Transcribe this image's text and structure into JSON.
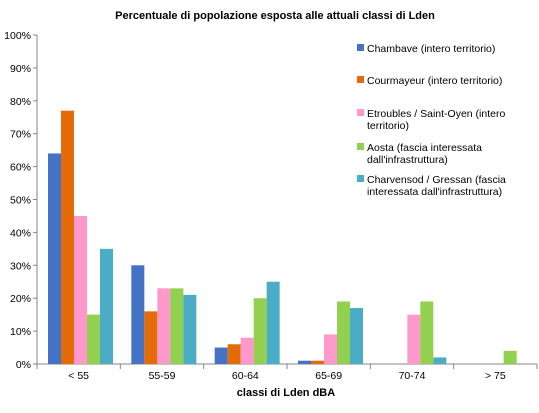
{
  "chart_data": {
    "type": "bar",
    "title": "Percentuale di popolazione esposta alle attuali classi di Lden",
    "xlabel": "classi di Lden dBA",
    "ylabel": "",
    "ylim": [
      0,
      100
    ],
    "yticks": [
      "0%",
      "10%",
      "20%",
      "30%",
      "40%",
      "50%",
      "60%",
      "70%",
      "80%",
      "90%",
      "100%"
    ],
    "categories": [
      "< 55",
      "55-59",
      "60-64",
      "65-69",
      "70-74",
      "> 75"
    ],
    "legend_position": "right",
    "grid": false,
    "series": [
      {
        "name": "Chambave (intero territorio)",
        "color": "#4472C4",
        "values": [
          64,
          30,
          5,
          1,
          0,
          0
        ]
      },
      {
        "name": "Courmayeur (intero territorio)",
        "color": "#E36C09",
        "values": [
          77,
          16,
          6,
          1,
          0,
          0
        ]
      },
      {
        "name": "Etroubles / Saint-Oyen (intero territorio)",
        "color": "#FF99CC",
        "values": [
          45,
          23,
          8,
          9,
          15,
          0
        ]
      },
      {
        "name": "Aosta (fascia interessata dall'infrastruttura)",
        "color": "#92D050",
        "values": [
          15,
          23,
          20,
          19,
          19,
          4
        ]
      },
      {
        "name": "Charvensod / Gressan (fascia interessata dall'infrastruttura)",
        "color": "#4BACC6",
        "values": [
          35,
          21,
          25,
          17,
          2,
          0
        ]
      }
    ],
    "legend_lines": [
      [
        "Chambave (intero territorio)"
      ],
      [
        "Courmayeur (intero territorio)"
      ],
      [
        "Etroubles / Saint-Oyen (intero",
        "territorio)"
      ],
      [
        "Aosta (fascia interessata",
        "dall'infrastruttura)"
      ],
      [
        "Charvensod / Gressan (fascia",
        "interessata dall'infrastruttura)"
      ]
    ]
  }
}
